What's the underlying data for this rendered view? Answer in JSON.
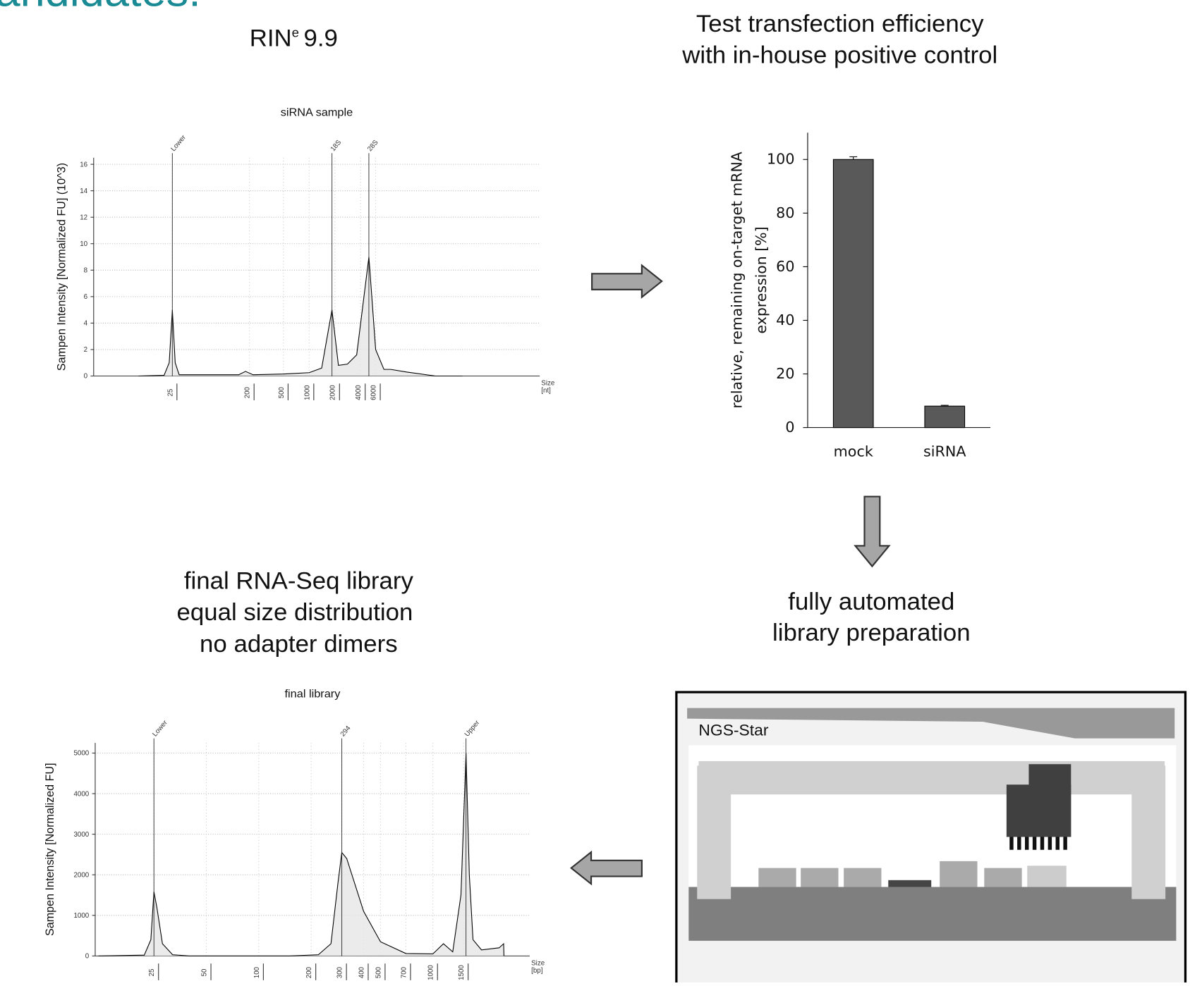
{
  "slide": {
    "title_fragment": "andidates:",
    "rin_label": "RIN",
    "rin_sup": "e",
    "rin_value": "9.9",
    "transfection_text": [
      "Test transfection efficiency",
      "with in-house positive control"
    ],
    "automation_text": [
      "fully automated",
      "library preparation"
    ],
    "library_text": [
      "final RNA-Seq library",
      "equal size distribution",
      "no adapter dimers"
    ],
    "instrument_label": "NGS-Star"
  },
  "chart_data": [
    {
      "type": "line",
      "title": "siRNA sample",
      "y_label": "Sampen Intensity [Normalized FU] (10^3)",
      "x_label_lines": [
        "Size",
        "[nt]"
      ],
      "xscale": "log",
      "xlim": [
        3,
        500000
      ],
      "xticks": [
        25,
        200,
        500,
        1000,
        2000,
        4000,
        6000
      ],
      "ylim": [
        0,
        16.5
      ],
      "yticks": [
        0,
        2,
        4,
        6,
        8,
        10,
        12,
        14,
        16
      ],
      "grid": true,
      "color": "#000000",
      "x": [
        10,
        20,
        23,
        25,
        27,
        30,
        60,
        150,
        180,
        220,
        500,
        1000,
        1400,
        1850,
        2200,
        2800,
        3600,
        5000,
        6000,
        7500,
        9000,
        14000,
        30000,
        62000
      ],
      "values": [
        0,
        0.05,
        1,
        5,
        1,
        0.1,
        0.1,
        0.1,
        0.35,
        0.1,
        0.15,
        0.25,
        0.6,
        5,
        0.8,
        0.9,
        1.6,
        9,
        2,
        0.5,
        0.5,
        0.3,
        0,
        0
      ],
      "peaks": [
        {
          "label": "Lower",
          "x": 25
        },
        {
          "label": "18S",
          "x": 1850
        },
        {
          "label": "28S",
          "x": 5000
        }
      ]
    },
    {
      "type": "bar",
      "y_label_lines": [
        "relative, remaining on-target mRNA",
        "expression [%]"
      ],
      "categories": [
        "mock",
        "siRNA"
      ],
      "values": [
        100,
        8
      ],
      "errors": [
        1,
        0.3
      ],
      "color": "#595959",
      "ylim": [
        0,
        110
      ],
      "yticks": [
        0,
        20,
        40,
        60,
        80,
        100
      ],
      "grid": false
    },
    {
      "type": "line",
      "title": "final library",
      "y_label": "Sampen Intensity [Normalized FU]",
      "x_label_lines": [
        "Size",
        "[bp]"
      ],
      "xscale": "log",
      "xlim": [
        11.5,
        3600
      ],
      "xticks": [
        25,
        50,
        100,
        200,
        300,
        400,
        500,
        700,
        1000,
        1500
      ],
      "ylim": [
        0,
        5250
      ],
      "yticks": [
        0,
        1000,
        2000,
        3000,
        4000,
        5000
      ],
      "grid": true,
      "color": "#000000",
      "x": [
        12,
        22,
        24,
        25,
        26,
        28,
        32,
        40,
        150,
        220,
        260,
        285,
        300,
        320,
        400,
        500,
        700,
        1000,
        1150,
        1300,
        1450,
        1550,
        1620,
        1700,
        1900,
        2400,
        2550,
        2560
      ],
      "values": [
        0,
        20,
        400,
        1580,
        1200,
        300,
        30,
        0,
        0,
        30,
        300,
        1800,
        2550,
        2400,
        1100,
        350,
        60,
        50,
        300,
        100,
        1500,
        5000,
        2000,
        400,
        150,
        200,
        300,
        0
      ],
      "peaks": [
        {
          "label": "Lower",
          "x": 25
        },
        {
          "label": "294",
          "x": 300
        },
        {
          "label": "Upper",
          "x": 1550
        }
      ]
    }
  ]
}
